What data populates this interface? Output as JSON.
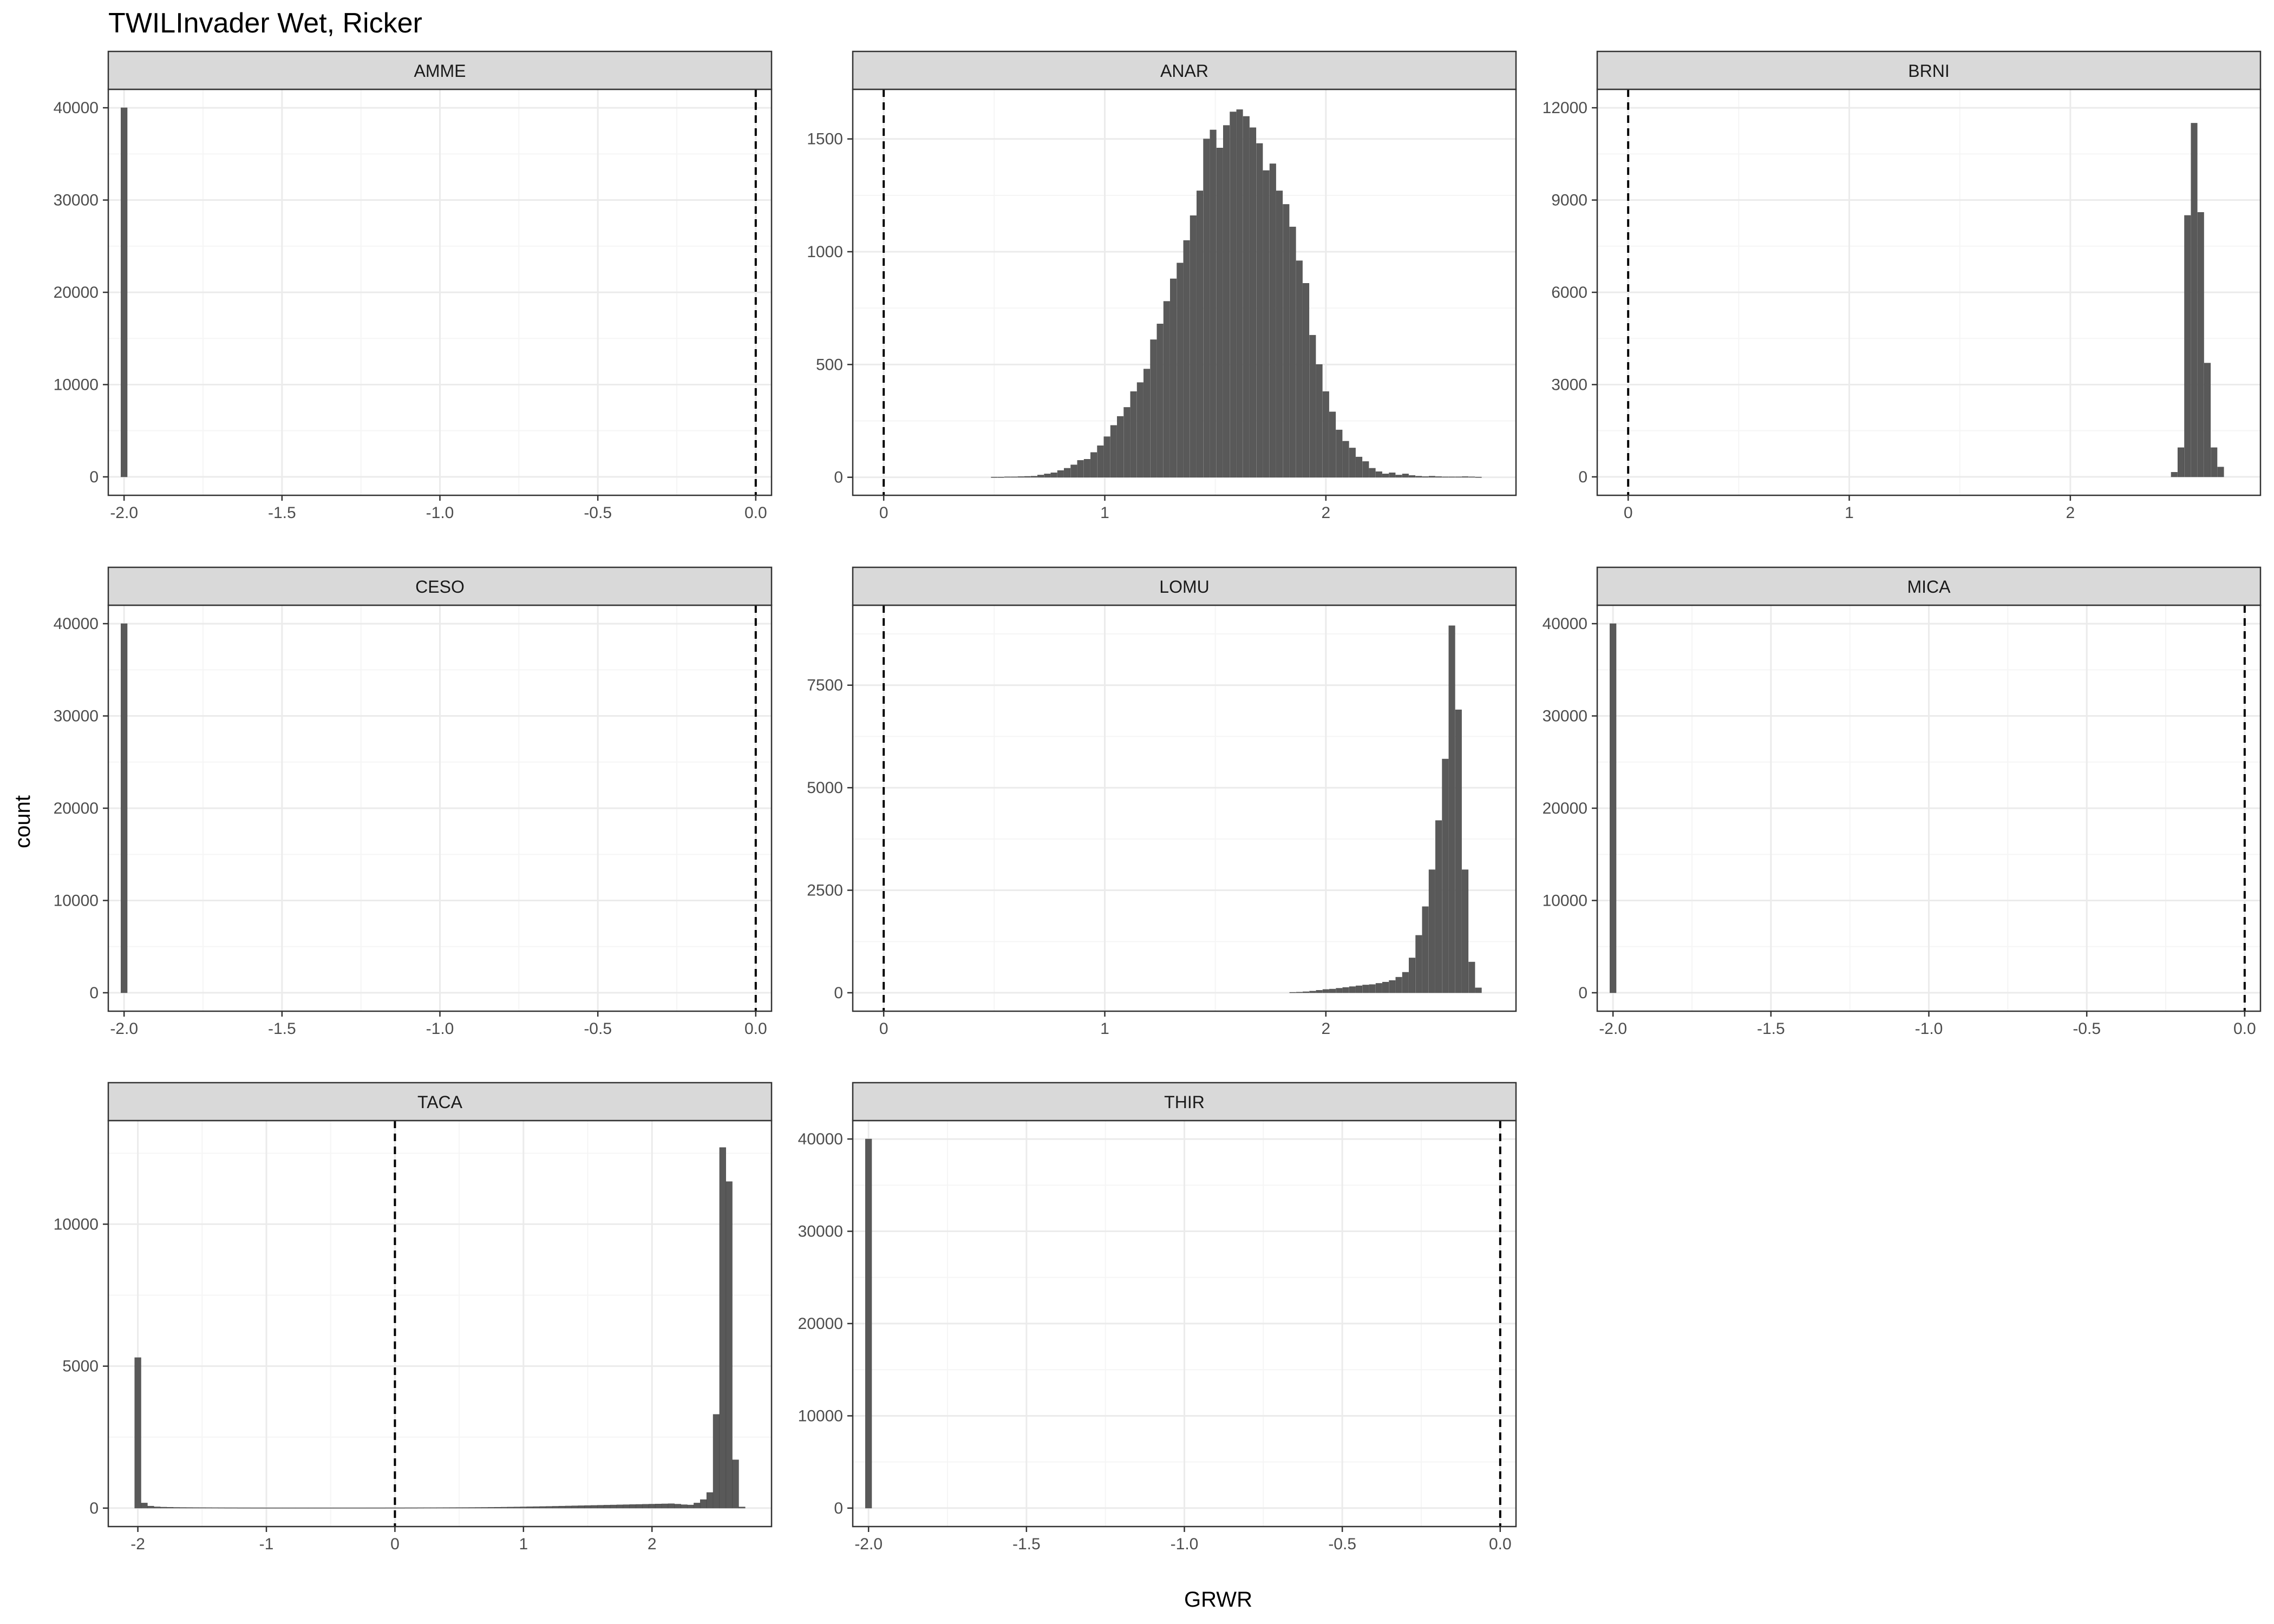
{
  "title": "TWILInvader Wet, Ricker",
  "xlabel": "GRWR",
  "ylabel": "count",
  "colors": {
    "bar": "#595959",
    "panel_border": "#333333",
    "strip_fill": "#d9d9d9",
    "grid_major": "#ebebeb",
    "grid_minor": "#f5f5f5",
    "vline": "#000000"
  },
  "chart_data": [
    {
      "type": "bar",
      "panel": "AMME",
      "xlim": [
        -2.05,
        0.05
      ],
      "ylim": [
        -2000,
        42000
      ],
      "xticks": [
        -2.0,
        -1.5,
        -1.0,
        -0.5,
        0.0
      ],
      "xtick_labels": [
        "-2.0",
        "-1.5",
        "-1.0",
        "-0.5",
        "0.0"
      ],
      "yticks": [
        0,
        10000,
        20000,
        30000,
        40000
      ],
      "vline": 0,
      "binwidth": 0.0199,
      "bins": [
        [
          -2.0,
          40000
        ]
      ]
    },
    {
      "type": "bar",
      "panel": "ANAR",
      "xlim": [
        -0.14,
        2.86
      ],
      "ylim": [
        -80,
        1720
      ],
      "xticks": [
        0,
        1,
        2
      ],
      "xtick_labels": [
        "0",
        "1",
        "2"
      ],
      "yticks": [
        0,
        500,
        1000,
        1500
      ],
      "vline": 0,
      "binwidth": 0.028,
      "bins": [
        [
          0.5,
          1
        ],
        [
          0.53,
          1
        ],
        [
          0.56,
          2
        ],
        [
          0.59,
          2
        ],
        [
          0.62,
          3
        ],
        [
          0.65,
          4
        ],
        [
          0.68,
          5
        ],
        [
          0.71,
          10
        ],
        [
          0.74,
          15
        ],
        [
          0.77,
          20
        ],
        [
          0.8,
          30
        ],
        [
          0.83,
          40
        ],
        [
          0.86,
          55
        ],
        [
          0.89,
          75
        ],
        [
          0.92,
          80
        ],
        [
          0.95,
          110
        ],
        [
          0.98,
          140
        ],
        [
          1.01,
          180
        ],
        [
          1.04,
          230
        ],
        [
          1.07,
          270
        ],
        [
          1.1,
          310
        ],
        [
          1.13,
          380
        ],
        [
          1.16,
          420
        ],
        [
          1.19,
          480
        ],
        [
          1.22,
          610
        ],
        [
          1.25,
          680
        ],
        [
          1.28,
          780
        ],
        [
          1.31,
          880
        ],
        [
          1.34,
          950
        ],
        [
          1.37,
          1050
        ],
        [
          1.4,
          1160
        ],
        [
          1.43,
          1270
        ],
        [
          1.46,
          1500
        ],
        [
          1.49,
          1540
        ],
        [
          1.52,
          1460
        ],
        [
          1.55,
          1560
        ],
        [
          1.58,
          1620
        ],
        [
          1.61,
          1630
        ],
        [
          1.64,
          1600
        ],
        [
          1.67,
          1550
        ],
        [
          1.7,
          1480
        ],
        [
          1.73,
          1360
        ],
        [
          1.76,
          1390
        ],
        [
          1.79,
          1270
        ],
        [
          1.82,
          1210
        ],
        [
          1.85,
          1110
        ],
        [
          1.88,
          960
        ],
        [
          1.91,
          860
        ],
        [
          1.94,
          630
        ],
        [
          1.97,
          500
        ],
        [
          2.0,
          380
        ],
        [
          2.03,
          290
        ],
        [
          2.06,
          210
        ],
        [
          2.09,
          160
        ],
        [
          2.12,
          130
        ],
        [
          2.15,
          90
        ],
        [
          2.18,
          70
        ],
        [
          2.21,
          40
        ],
        [
          2.24,
          25
        ],
        [
          2.27,
          15
        ],
        [
          2.3,
          20
        ],
        [
          2.33,
          10
        ],
        [
          2.36,
          15
        ],
        [
          2.39,
          8
        ],
        [
          2.42,
          5
        ],
        [
          2.45,
          3
        ],
        [
          2.48,
          5
        ],
        [
          2.51,
          3
        ],
        [
          2.54,
          2
        ],
        [
          2.57,
          2
        ],
        [
          2.6,
          2
        ],
        [
          2.63,
          3
        ],
        [
          2.66,
          2
        ],
        [
          2.69,
          1
        ]
      ]
    },
    {
      "type": "bar",
      "panel": "BRNI",
      "xlim": [
        -0.14,
        2.86
      ],
      "ylim": [
        -600,
        12600
      ],
      "xticks": [
        0,
        1,
        2
      ],
      "xtick_labels": [
        "0",
        "1",
        "2"
      ],
      "yticks": [
        0,
        3000,
        6000,
        9000,
        12000
      ],
      "vline": 0,
      "binwidth": 0.028,
      "bins": [
        [
          2.47,
          150
        ],
        [
          2.5,
          950
        ],
        [
          2.53,
          8500
        ],
        [
          2.56,
          11500
        ],
        [
          2.59,
          8600
        ],
        [
          2.62,
          3700
        ],
        [
          2.65,
          950
        ],
        [
          2.68,
          320
        ]
      ]
    },
    {
      "type": "bar",
      "panel": "CESO",
      "xlim": [
        -2.05,
        0.05
      ],
      "ylim": [
        -2000,
        42000
      ],
      "xticks": [
        -2.0,
        -1.5,
        -1.0,
        -0.5,
        0.0
      ],
      "xtick_labels": [
        "-2.0",
        "-1.5",
        "-1.0",
        "-0.5",
        "0.0"
      ],
      "yticks": [
        0,
        10000,
        20000,
        30000,
        40000
      ],
      "vline": 0,
      "binwidth": 0.0199,
      "bins": [
        [
          -2.0,
          40000
        ]
      ]
    },
    {
      "type": "bar",
      "panel": "LOMU",
      "xlim": [
        -0.14,
        2.86
      ],
      "ylim": [
        -450,
        9450
      ],
      "xticks": [
        0,
        1,
        2
      ],
      "xtick_labels": [
        "0",
        "1",
        "2"
      ],
      "yticks": [
        0,
        2500,
        5000,
        7500
      ],
      "vline": 0,
      "binwidth": 0.028,
      "bins": [
        [
          1.85,
          10
        ],
        [
          1.88,
          15
        ],
        [
          1.91,
          25
        ],
        [
          1.94,
          40
        ],
        [
          1.97,
          60
        ],
        [
          2.0,
          80
        ],
        [
          2.03,
          90
        ],
        [
          2.06,
          110
        ],
        [
          2.09,
          130
        ],
        [
          2.12,
          150
        ],
        [
          2.15,
          170
        ],
        [
          2.18,
          190
        ],
        [
          2.21,
          200
        ],
        [
          2.24,
          230
        ],
        [
          2.27,
          260
        ],
        [
          2.3,
          300
        ],
        [
          2.33,
          380
        ],
        [
          2.36,
          500
        ],
        [
          2.39,
          850
        ],
        [
          2.42,
          1400
        ],
        [
          2.45,
          2100
        ],
        [
          2.48,
          3000
        ],
        [
          2.51,
          4200
        ],
        [
          2.54,
          5700
        ],
        [
          2.57,
          8950
        ],
        [
          2.6,
          6900
        ],
        [
          2.63,
          3000
        ],
        [
          2.66,
          750
        ],
        [
          2.69,
          120
        ]
      ]
    },
    {
      "type": "bar",
      "panel": "MICA",
      "xlim": [
        -2.05,
        0.05
      ],
      "ylim": [
        -2000,
        42000
      ],
      "xticks": [
        -2.0,
        -1.5,
        -1.0,
        -0.5,
        0.0
      ],
      "xtick_labels": [
        "-2.0",
        "-1.5",
        "-1.0",
        "-0.5",
        "0.0"
      ],
      "yticks": [
        0,
        10000,
        20000,
        30000,
        40000
      ],
      "vline": 0,
      "binwidth": 0.0199,
      "bins": [
        [
          -2.0,
          40000
        ]
      ]
    },
    {
      "type": "bar",
      "panel": "TACA",
      "xlim": [
        -2.23,
        2.93
      ],
      "ylim": [
        -650,
        13650
      ],
      "xticks": [
        -2,
        -1,
        0,
        1,
        2
      ],
      "xtick_labels": [
        "-2",
        "-1",
        "0",
        "1",
        "2"
      ],
      "yticks": [
        0,
        5000,
        10000
      ],
      "vline": 0,
      "binwidth": 0.049,
      "bins": [
        [
          -2.0,
          5300
        ],
        [
          -1.95,
          180
        ],
        [
          -1.9,
          70
        ],
        [
          -1.85,
          45
        ],
        [
          -1.8,
          35
        ],
        [
          -1.75,
          30
        ],
        [
          -1.7,
          25
        ],
        [
          -1.65,
          22
        ],
        [
          -1.6,
          20
        ],
        [
          -1.55,
          18
        ],
        [
          -1.5,
          17
        ],
        [
          -1.45,
          16
        ],
        [
          -1.4,
          15
        ],
        [
          -1.35,
          14
        ],
        [
          -1.3,
          13
        ],
        [
          -1.25,
          13
        ],
        [
          -1.2,
          12
        ],
        [
          -1.15,
          12
        ],
        [
          -1.1,
          11
        ],
        [
          -1.05,
          11
        ],
        [
          -1.0,
          10
        ],
        [
          -0.95,
          10
        ],
        [
          -0.9,
          10
        ],
        [
          -0.85,
          10
        ],
        [
          -0.8,
          10
        ],
        [
          -0.75,
          10
        ],
        [
          -0.7,
          10
        ],
        [
          -0.65,
          10
        ],
        [
          -0.6,
          10
        ],
        [
          -0.55,
          10
        ],
        [
          -0.5,
          10
        ],
        [
          -0.45,
          10
        ],
        [
          -0.4,
          10
        ],
        [
          -0.35,
          10
        ],
        [
          -0.3,
          10
        ],
        [
          -0.25,
          10
        ],
        [
          -0.2,
          11
        ],
        [
          -0.15,
          11
        ],
        [
          -0.1,
          11
        ],
        [
          -0.05,
          12
        ],
        [
          0.0,
          12
        ],
        [
          0.05,
          12
        ],
        [
          0.1,
          13
        ],
        [
          0.15,
          13
        ],
        [
          0.2,
          14
        ],
        [
          0.25,
          15
        ],
        [
          0.3,
          15
        ],
        [
          0.35,
          16
        ],
        [
          0.4,
          17
        ],
        [
          0.45,
          18
        ],
        [
          0.5,
          19
        ],
        [
          0.55,
          20
        ],
        [
          0.6,
          22
        ],
        [
          0.65,
          24
        ],
        [
          0.7,
          26
        ],
        [
          0.75,
          28
        ],
        [
          0.8,
          31
        ],
        [
          0.85,
          34
        ],
        [
          0.9,
          37
        ],
        [
          0.95,
          40
        ],
        [
          1.0,
          44
        ],
        [
          1.05,
          48
        ],
        [
          1.1,
          52
        ],
        [
          1.15,
          56
        ],
        [
          1.2,
          60
        ],
        [
          1.25,
          65
        ],
        [
          1.3,
          70
        ],
        [
          1.35,
          75
        ],
        [
          1.4,
          80
        ],
        [
          1.45,
          85
        ],
        [
          1.5,
          90
        ],
        [
          1.55,
          95
        ],
        [
          1.6,
          100
        ],
        [
          1.65,
          105
        ],
        [
          1.7,
          110
        ],
        [
          1.75,
          115
        ],
        [
          1.8,
          120
        ],
        [
          1.85,
          125
        ],
        [
          1.9,
          130
        ],
        [
          1.95,
          135
        ],
        [
          2.0,
          140
        ],
        [
          2.05,
          145
        ],
        [
          2.1,
          150
        ],
        [
          2.15,
          155
        ],
        [
          2.2,
          140
        ],
        [
          2.25,
          120
        ],
        [
          2.3,
          110
        ],
        [
          2.35,
          180
        ],
        [
          2.4,
          300
        ],
        [
          2.45,
          550
        ],
        [
          2.5,
          3300
        ],
        [
          2.55,
          12700
        ],
        [
          2.6,
          11500
        ],
        [
          2.65,
          1700
        ],
        [
          2.7,
          40
        ]
      ]
    },
    {
      "type": "bar",
      "panel": "THIR",
      "xlim": [
        -2.05,
        0.05
      ],
      "ylim": [
        -2000,
        42000
      ],
      "xticks": [
        -2.0,
        -1.5,
        -1.0,
        -0.5,
        0.0
      ],
      "xtick_labels": [
        "-2.0",
        "-1.5",
        "-1.0",
        "-0.5",
        "0.0"
      ],
      "yticks": [
        0,
        10000,
        20000,
        30000,
        40000
      ],
      "vline": 0,
      "binwidth": 0.0199,
      "bins": [
        [
          -2.0,
          40000
        ]
      ]
    }
  ]
}
